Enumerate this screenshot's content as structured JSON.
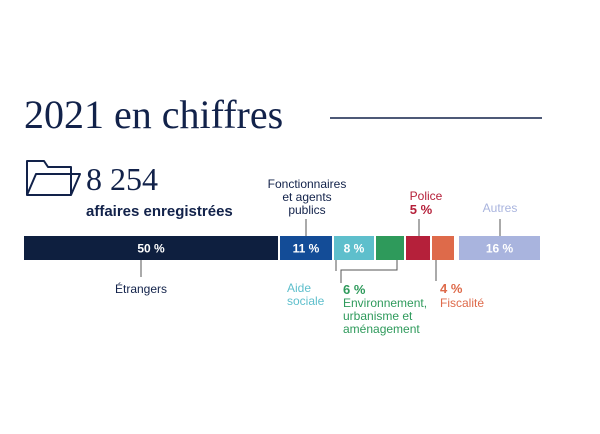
{
  "header": {
    "title": "2021 en chiffres",
    "rule_color": "#12224a"
  },
  "summary": {
    "icon": "folder-icon",
    "number": "8 254",
    "caption": "affaires enregistrées"
  },
  "chart_data": {
    "type": "bar",
    "orientation": "horizontal-stacked",
    "unit": "%",
    "segments": [
      {
        "key": "etrangers",
        "value": 50,
        "value_label": "50 %",
        "label_lines": [
          "Étrangers"
        ],
        "color": "#0e1f3f",
        "value_text_color": "#ffffff",
        "value_outside": false
      },
      {
        "key": "fonctionnaires",
        "value": 11,
        "value_label": "11 %",
        "label_lines": [
          "Fonctionnaires",
          "et agents",
          "publics"
        ],
        "color": "#134c97",
        "value_text_color": "#ffffff",
        "value_outside": false
      },
      {
        "key": "aide-sociale",
        "value": 8,
        "value_label": "8 %",
        "label_lines": [
          "Aide",
          "sociale"
        ],
        "color": "#5ebfcc",
        "value_text_color": "#ffffff",
        "label_color": "#5ebfcc",
        "value_outside": false
      },
      {
        "key": "environnement",
        "value": 6,
        "value_label": "6 %",
        "label_lines": [
          "Environnement,",
          "urbanisme et",
          "aménagement"
        ],
        "color": "#2e9a5b",
        "label_color": "#2e9a5b",
        "value_outside": true
      },
      {
        "key": "police",
        "value": 5,
        "value_label": "5 %",
        "label_lines": [
          "Police"
        ],
        "color": "#b5203a",
        "label_color": "#b5203a",
        "value_outside": true
      },
      {
        "key": "fiscalite",
        "value": 4,
        "value_label": "4 %",
        "label_lines": [
          "Fiscalité"
        ],
        "color": "#de6a4a",
        "label_color": "#de6a4a",
        "value_outside": true
      },
      {
        "key": "autres",
        "value": 16,
        "value_label": "16 %",
        "label_lines": [
          "Autres"
        ],
        "color": "#a9b4de",
        "value_text_color": "#ffffff",
        "label_color": "#a9b4de",
        "value_outside": false
      }
    ]
  }
}
